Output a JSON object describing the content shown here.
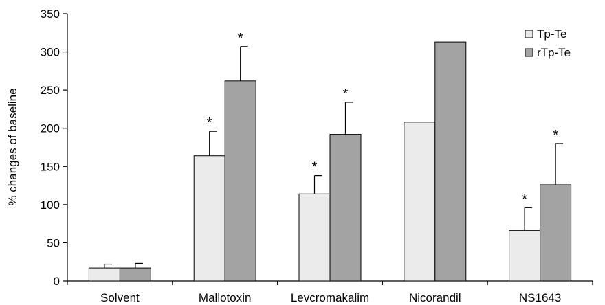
{
  "chart_data": {
    "type": "bar",
    "title": "",
    "xlabel": "",
    "ylabel": "% changes of baseline",
    "ylim": [
      0,
      350
    ],
    "yticks": [
      0,
      50,
      100,
      150,
      200,
      250,
      300,
      350
    ],
    "categories": [
      "Solvent",
      "Mallotoxin",
      "Levcromakalim",
      "Nicorandil",
      "NS1643"
    ],
    "series": [
      {
        "name": "Tp-Te",
        "color": "#ebebeb",
        "values": [
          17,
          164,
          114,
          208,
          66
        ],
        "errors": [
          5,
          32,
          24,
          0,
          30
        ],
        "significant": [
          false,
          true,
          true,
          false,
          true
        ]
      },
      {
        "name": "rTp-Te",
        "color": "#a3a3a3",
        "values": [
          17,
          262,
          192,
          313,
          126
        ],
        "errors": [
          6,
          45,
          42,
          0,
          54
        ],
        "significant": [
          false,
          true,
          true,
          false,
          true
        ]
      }
    ],
    "significance_marker": "*",
    "legend_position": "top-right",
    "grid": false
  }
}
